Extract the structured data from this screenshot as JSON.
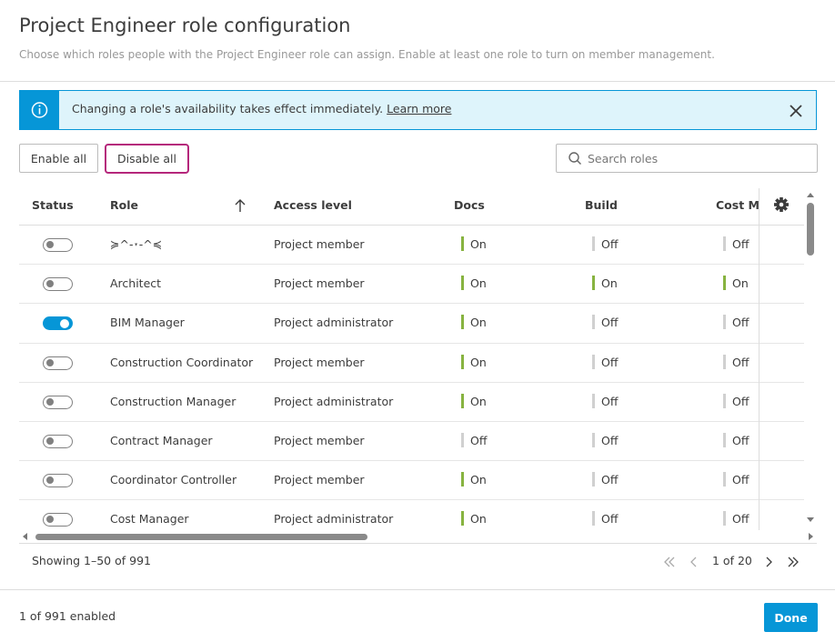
{
  "header": {
    "title": "Project Engineer role configuration",
    "subtitle": "Choose which roles people with the Project Engineer role can assign. Enable at least one role to turn on member management."
  },
  "banner": {
    "message": "Changing a role's availability takes effect immediately.",
    "link": "Learn more"
  },
  "toolbar": {
    "enable_all": "Enable all",
    "disable_all": "Disable all",
    "search_placeholder": "Search roles"
  },
  "status_labels": {
    "on": "On",
    "off": "Off"
  },
  "table": {
    "columns": [
      "Status",
      "Role",
      "Access level",
      "Docs",
      "Build",
      "Cost Ma"
    ],
    "rows": [
      {
        "enabled": false,
        "role": "≽^-˕-^≼",
        "access": "Project member",
        "docs": true,
        "build": false,
        "cost": false
      },
      {
        "enabled": false,
        "role": "Architect",
        "access": "Project member",
        "docs": true,
        "build": true,
        "cost": true
      },
      {
        "enabled": true,
        "role": "BIM Manager",
        "access": "Project administrator",
        "docs": true,
        "build": false,
        "cost": false
      },
      {
        "enabled": false,
        "role": "Construction Coordinator",
        "access": "Project member",
        "docs": true,
        "build": false,
        "cost": false
      },
      {
        "enabled": false,
        "role": "Construction Manager",
        "access": "Project administrator",
        "docs": true,
        "build": false,
        "cost": false
      },
      {
        "enabled": false,
        "role": "Contract Manager",
        "access": "Project member",
        "docs": false,
        "build": false,
        "cost": false
      },
      {
        "enabled": false,
        "role": "Coordinator Controller",
        "access": "Project member",
        "docs": true,
        "build": false,
        "cost": false
      },
      {
        "enabled": false,
        "role": "Cost Manager",
        "access": "Project administrator",
        "docs": true,
        "build": false,
        "cost": false
      }
    ]
  },
  "pagination": {
    "showing": "Showing 1–50 of 991",
    "page": "1 of 20"
  },
  "footer": {
    "summary": "1 of 991 enabled",
    "done": "Done"
  }
}
